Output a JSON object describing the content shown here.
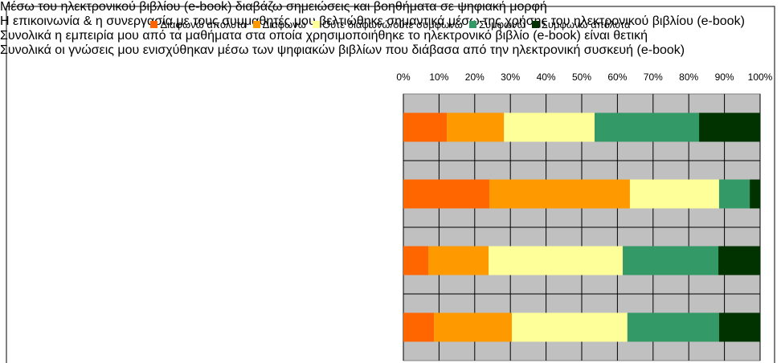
{
  "chart_data": {
    "type": "stacked-barh",
    "categories": [
      "Μέσω του ηλεκτρονικού βιβλίου (e-book)  διαβάζω σημειώσεις και βοηθήματα σε ψηφιακή μορφή",
      "Η επικοινωνία & η συνεργασία με τους συμμαθητές μου βελτιώθηκε σημαντικά μέσω της χρήσης του ηλεκτρονικού βιβλίου (e-book)",
      "Συνολικά η εμπειρία μου  από τα μαθήματα στα οποία χρησιμοποιήθηκε το ηλεκτρονικό βιβλίο (e-book) είναι θετική",
      "Συνολικά οι γνώσεις μου ενισχύθηκαν μέσω των ψηφιακών βιβλίων που διάβασα από την ηλεκτρονική συσκευή (e-book)"
    ],
    "series": [
      {
        "name": "Διαφωνώ απόλυτα",
        "color": "#ff6600",
        "values": [
          12.2,
          24.1,
          7.0,
          8.6
        ]
      },
      {
        "name": "Διαφωνώ",
        "color": "#ff9900",
        "values": [
          16.0,
          39.4,
          16.9,
          21.8
        ]
      },
      {
        "name": "Ούτε διαφωνώ/ούτε συμφωνώ",
        "color": "#ffff99",
        "values": [
          25.4,
          25.0,
          37.6,
          32.4
        ]
      },
      {
        "name": "Συμφωνώ",
        "color": "#339966",
        "values": [
          29.3,
          8.6,
          26.8,
          25.7
        ]
      },
      {
        "name": "Συμφωνώ απόλυτα",
        "color": "#003300",
        "values": [
          17.1,
          2.9,
          11.7,
          11.5
        ]
      }
    ],
    "xlim": [
      0,
      100
    ],
    "xticks": [
      {
        "value": 0,
        "label": "0%"
      },
      {
        "value": 10,
        "label": "10%"
      },
      {
        "value": 20,
        "label": "20%"
      },
      {
        "value": 30,
        "label": "30%"
      },
      {
        "value": 40,
        "label": "40%"
      },
      {
        "value": 50,
        "label": "50%"
      },
      {
        "value": 60,
        "label": "60%"
      },
      {
        "value": 70,
        "label": "70%"
      },
      {
        "value": 80,
        "label": "80%"
      },
      {
        "value": 90,
        "label": "90%"
      },
      {
        "value": 100,
        "label": "100%"
      }
    ],
    "grid": true,
    "legend": "top"
  }
}
